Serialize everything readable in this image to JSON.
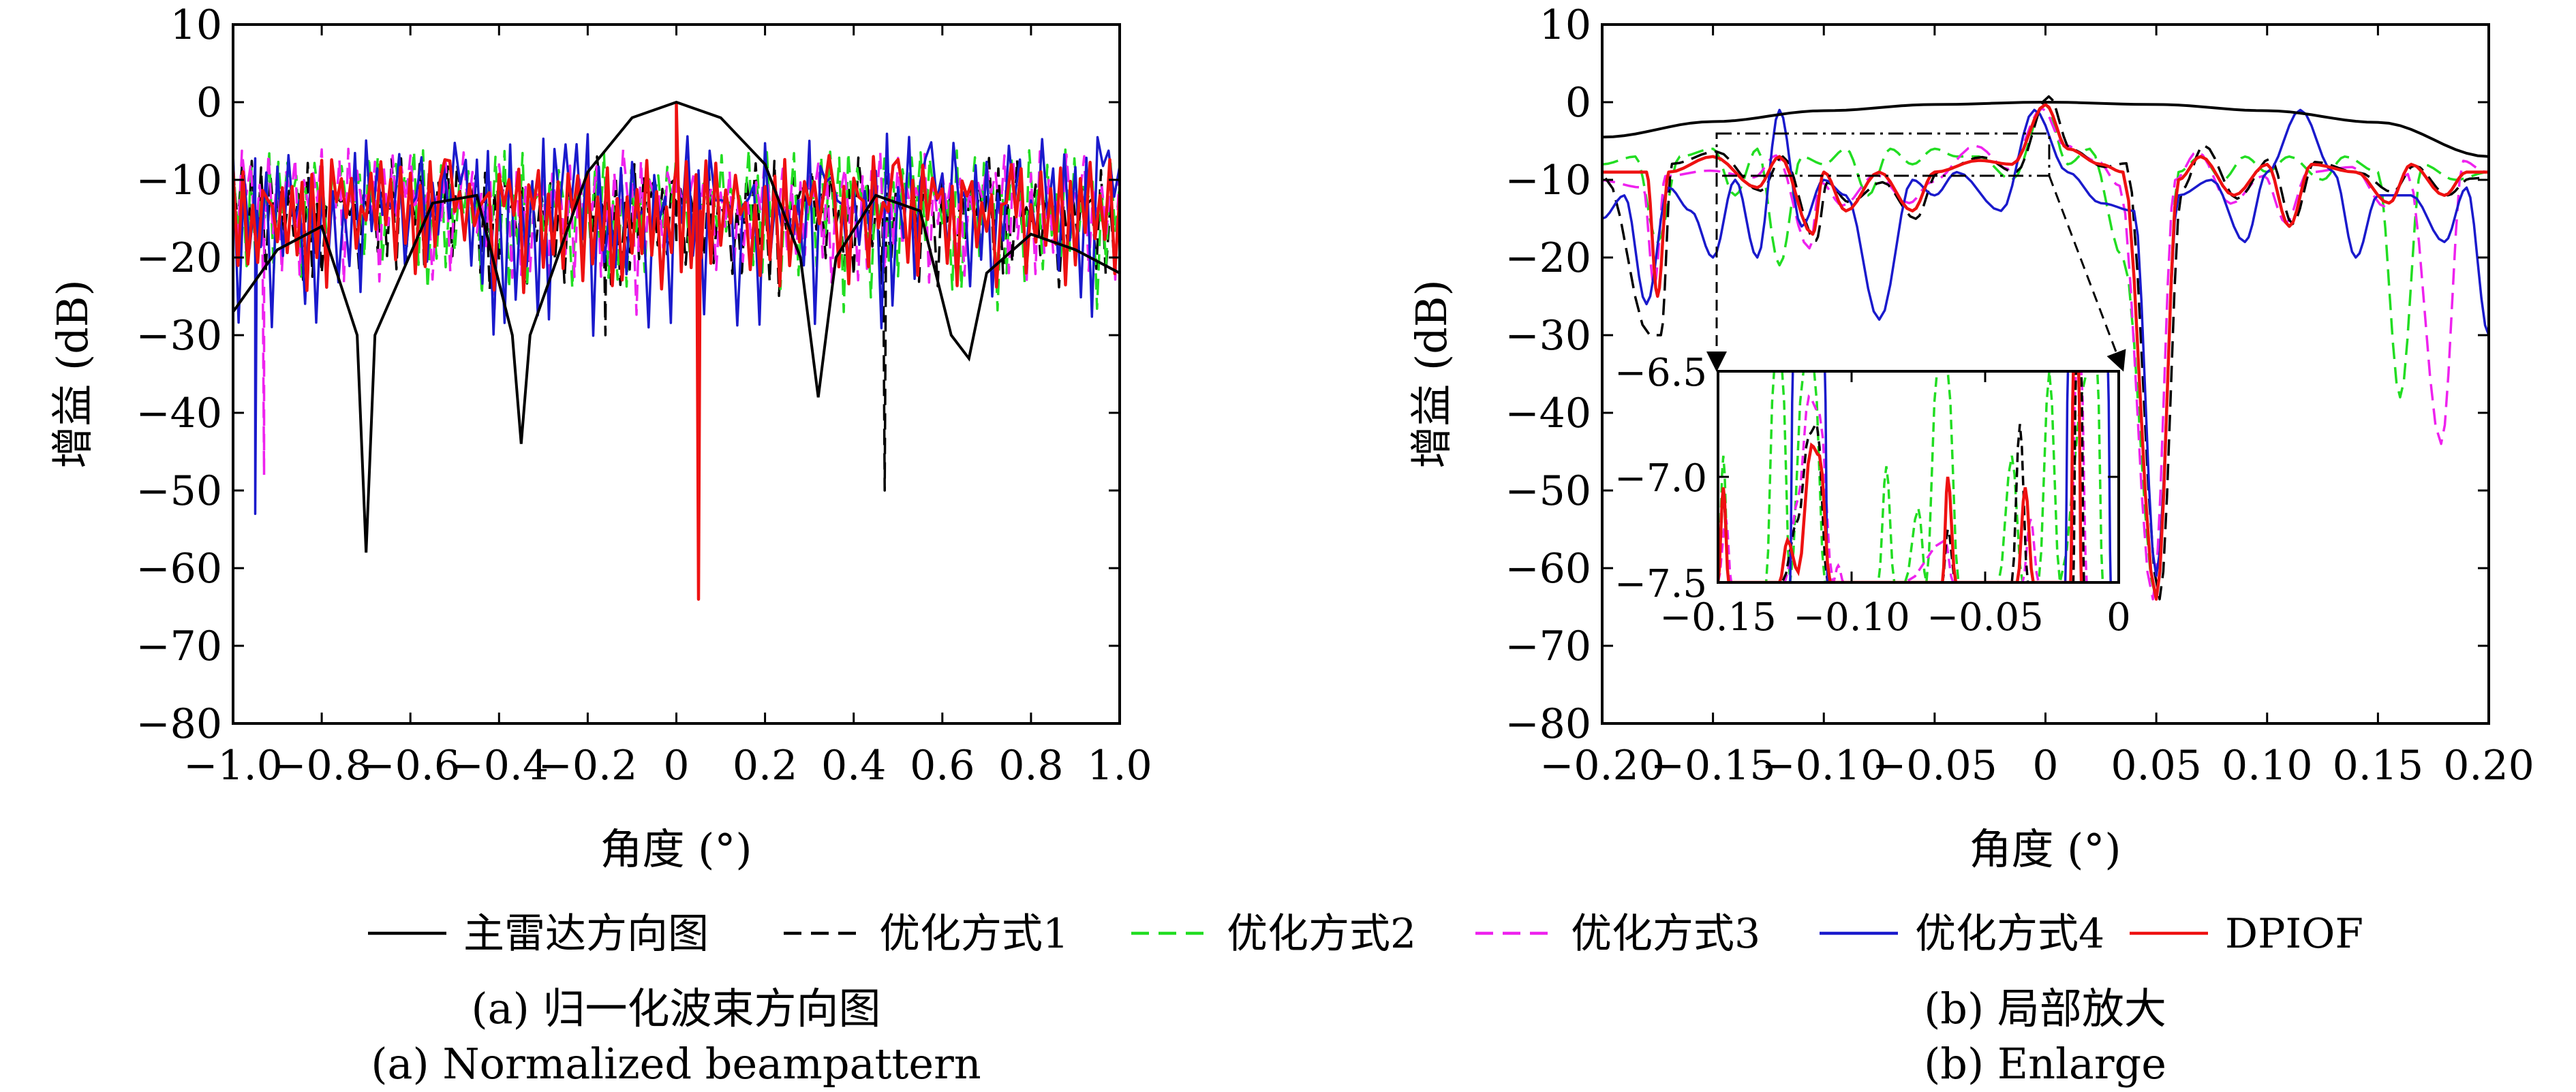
{
  "legend": [
    {
      "label": "主雷达方向图",
      "color": "#000000",
      "dash": "solid"
    },
    {
      "label": "优化方式1",
      "color": "#000000",
      "dash": "dashed"
    },
    {
      "label": "优化方式2",
      "color": "#22dd22",
      "dash": "dashed"
    },
    {
      "label": "优化方式3",
      "color": "#ee22ee",
      "dash": "dashed"
    },
    {
      "label": "优化方式4",
      "color": "#1a1acc",
      "dash": "solid"
    },
    {
      "label": "DPIOF",
      "color": "#ee1111",
      "dash": "solid"
    }
  ],
  "captions": {
    "a_cn": "(a) 归一化波束方向图",
    "a_en": "(a) Normalized beampattern",
    "b_cn": "(b) 局部放大",
    "b_en": "(b) Enlarge"
  },
  "chart_data": [
    {
      "type": "line",
      "title": "",
      "xlabel": "角度 (°)",
      "ylabel": "增益 (dB)",
      "xlim": [
        -1.0,
        1.0
      ],
      "ylim": [
        -80,
        10
      ],
      "xticks": [
        "−1.0",
        "−0.8",
        "−0.6",
        "−0.4",
        "−0.2",
        "0",
        "0.2",
        "0.4",
        "0.6",
        "0.8",
        "1.0"
      ],
      "yticks": [
        "10",
        "0",
        "−10",
        "−20",
        "−30",
        "−40",
        "−50",
        "−60",
        "−70",
        "−80"
      ],
      "series": [
        {
          "name": "主雷达方向图",
          "description": "broad main lobe peaking at 0 dB near 0°, sidelobes around −12 to −20 dB, deep null ≈ −58 dB near −0.70°, null ≈ −44 dB near −0.35°",
          "points": [
            [
              -1.0,
              -27
            ],
            [
              -0.9,
              -19
            ],
            [
              -0.8,
              -16
            ],
            [
              -0.72,
              -30
            ],
            [
              -0.7,
              -58
            ],
            [
              -0.68,
              -30
            ],
            [
              -0.55,
              -13
            ],
            [
              -0.45,
              -12
            ],
            [
              -0.37,
              -30
            ],
            [
              -0.35,
              -44
            ],
            [
              -0.33,
              -30
            ],
            [
              -0.2,
              -9
            ],
            [
              -0.1,
              -2
            ],
            [
              0,
              0
            ],
            [
              0.1,
              -2
            ],
            [
              0.2,
              -8
            ],
            [
              0.28,
              -20
            ],
            [
              0.32,
              -38
            ],
            [
              0.36,
              -20
            ],
            [
              0.45,
              -12
            ],
            [
              0.55,
              -14
            ],
            [
              0.62,
              -30
            ],
            [
              0.66,
              -33
            ],
            [
              0.7,
              -22
            ],
            [
              0.8,
              -17
            ],
            [
              0.9,
              -19
            ],
            [
              1.0,
              -22
            ]
          ]
        },
        {
          "name": "优化方式1",
          "description": "dense sidelobes between about −6 and −30 dB, −0.3 dB peak at 0°, null ≈ −50 dB near 0.47°, null ≈ −64 dB at 0.05°"
        },
        {
          "name": "优化方式2",
          "description": "dense sidelobes between about −6 and −40 dB, peak ≈ −0.3 dB at 0°, null ≈ −64 dB at 0.05°"
        },
        {
          "name": "优化方式3",
          "description": "dense sidelobes between about −6 and −48 dB, peak ≈ −0.3 dB at 0°, null ≈ −64 dB at 0.05°"
        },
        {
          "name": "优化方式4",
          "description": "sidelobes reaching up to ≈ −5 dB and down to ≈ −53 dB, peak ≈ −0.3 dB at 0°"
        },
        {
          "name": "DPIOF",
          "description": "sidelobes mostly between −7 and −30 dB, peak ≈ −0.3 dB at 0°, null ≈ −64 dB at 0.05°"
        }
      ]
    },
    {
      "type": "line",
      "title": "",
      "xlabel": "角度 (°)",
      "ylabel": "增益 (dB)",
      "xlim": [
        -0.2,
        0.2
      ],
      "ylim": [
        -80,
        10
      ],
      "xticks": [
        "−0.20",
        "−0.15",
        "−0.10",
        "−0.05",
        "0",
        "0.05",
        "0.10",
        "0.15",
        "0.20"
      ],
      "yticks": [
        "10",
        "0",
        "−10",
        "−20",
        "−30",
        "−40",
        "−50",
        "−60",
        "−70",
        "−80"
      ],
      "series": [
        {
          "name": "主雷达方向图",
          "points": [
            [
              -0.2,
              -4.5
            ],
            [
              -0.15,
              -2.5
            ],
            [
              -0.1,
              -1.1
            ],
            [
              -0.05,
              -0.3
            ],
            [
              0,
              0
            ],
            [
              0.05,
              -0.3
            ],
            [
              0.1,
              -1.1
            ],
            [
              0.15,
              -2.6
            ],
            [
              0.2,
              -7
            ]
          ]
        },
        {
          "name": "优化方式4",
          "points": [
            [
              -0.2,
              -15
            ],
            [
              -0.19,
              -12
            ],
            [
              -0.18,
              -26
            ],
            [
              -0.17,
              -11
            ],
            [
              -0.16,
              -14
            ],
            [
              -0.15,
              -20
            ],
            [
              -0.14,
              -10
            ],
            [
              -0.13,
              -20
            ],
            [
              -0.12,
              -1
            ],
            [
              -0.11,
              -16
            ],
            [
              -0.1,
              -10
            ],
            [
              -0.09,
              -12
            ],
            [
              -0.075,
              -28
            ],
            [
              -0.06,
              -10
            ],
            [
              -0.05,
              -12
            ],
            [
              -0.04,
              -9
            ],
            [
              -0.02,
              -14
            ],
            [
              -0.005,
              -1
            ],
            [
              0.01,
              -9
            ],
            [
              0.025,
              -13
            ],
            [
              0.04,
              -14
            ],
            [
              0.05,
              -61
            ],
            [
              0.06,
              -12
            ],
            [
              0.075,
              -10
            ],
            [
              0.09,
              -18
            ],
            [
              0.1,
              -9
            ],
            [
              0.115,
              -1
            ],
            [
              0.13,
              -9
            ],
            [
              0.14,
              -20
            ],
            [
              0.15,
              -12
            ],
            [
              0.165,
              -12
            ],
            [
              0.18,
              -18
            ],
            [
              0.19,
              -11
            ],
            [
              0.2,
              -30
            ]
          ]
        },
        {
          "name": "DPIOF",
          "points": [
            [
              -0.2,
              -9
            ],
            [
              -0.18,
              -9
            ],
            [
              -0.175,
              -25
            ],
            [
              -0.17,
              -9
            ],
            [
              -0.15,
              -7
            ],
            [
              -0.13,
              -11
            ],
            [
              -0.12,
              -7
            ],
            [
              -0.105,
              -17
            ],
            [
              -0.1,
              -9
            ],
            [
              -0.09,
              -14
            ],
            [
              -0.075,
              -9
            ],
            [
              -0.06,
              -14
            ],
            [
              -0.05,
              -9
            ],
            [
              -0.03,
              -7.5
            ],
            [
              -0.015,
              -8
            ],
            [
              0,
              -0.3
            ],
            [
              0.01,
              -6
            ],
            [
              0.025,
              -8
            ],
            [
              0.035,
              -9
            ],
            [
              0.05,
              -64
            ],
            [
              0.06,
              -10
            ],
            [
              0.07,
              -7
            ],
            [
              0.085,
              -12
            ],
            [
              0.1,
              -8
            ],
            [
              0.11,
              -16
            ],
            [
              0.12,
              -8
            ],
            [
              0.14,
              -9
            ],
            [
              0.155,
              -13
            ],
            [
              0.165,
              -8
            ],
            [
              0.18,
              -12
            ],
            [
              0.19,
              -9
            ],
            [
              0.2,
              -9
            ]
          ]
        }
      ],
      "inset": {
        "xlim": [
          -0.15,
          0
        ],
        "ylim": [
          -7.5,
          -6.5
        ],
        "xticks": [
          "−0.15",
          "−0.10",
          "−0.05",
          "0"
        ],
        "yticks": [
          "−6.5",
          "−7.0",
          "−7.5"
        ]
      }
    }
  ]
}
